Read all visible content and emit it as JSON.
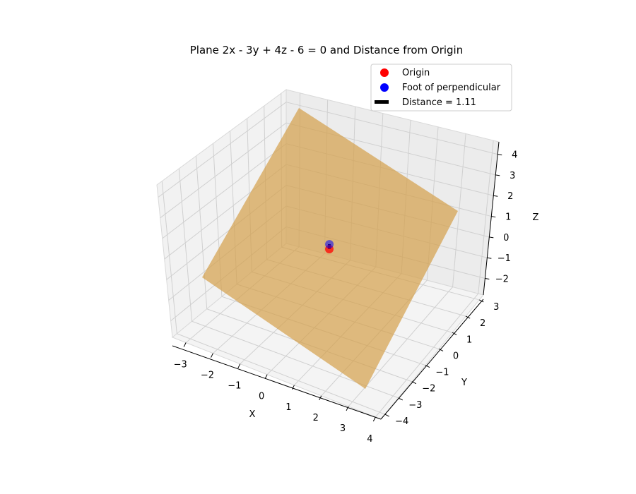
{
  "chart_data": {
    "type": "surface3d",
    "title": "Plane 2x - 3y + 4z - 6 = 0 and Distance from Origin",
    "xlabel": "X",
    "ylabel": "Y",
    "zlabel": "Z",
    "xlim": [
      -3.5,
      4.2
    ],
    "ylim": [
      -4.3,
      3.3
    ],
    "zlim": [
      -2.8,
      4.6
    ],
    "x_ticks": [
      "−3",
      "−2",
      "−1",
      "0",
      "1",
      "2",
      "3",
      "4"
    ],
    "y_ticks": [
      "−4",
      "−3",
      "−2",
      "−1",
      "0",
      "1",
      "2",
      "3"
    ],
    "z_ticks": [
      "−2",
      "−1",
      "0",
      "1",
      "2",
      "3",
      "4"
    ],
    "plane": {
      "equation": "2x - 3y + 4z - 6 = 0",
      "color": "#D4A04A",
      "alpha": 0.7
    },
    "points": [
      {
        "name": "Origin",
        "x": 0,
        "y": 0,
        "z": 0,
        "color": "#FF0000"
      },
      {
        "name": "Foot of perpendicular",
        "x": 0.41,
        "y": -0.62,
        "z": 0.83,
        "color": "#0000FF"
      }
    ],
    "segment": {
      "name": "Distance = 1.11",
      "color": "#000000"
    },
    "legend": {
      "position": "upper-right",
      "entries": [
        "Origin",
        "Foot of perpendicular",
        "Distance = 1.11"
      ]
    },
    "grid": true
  }
}
